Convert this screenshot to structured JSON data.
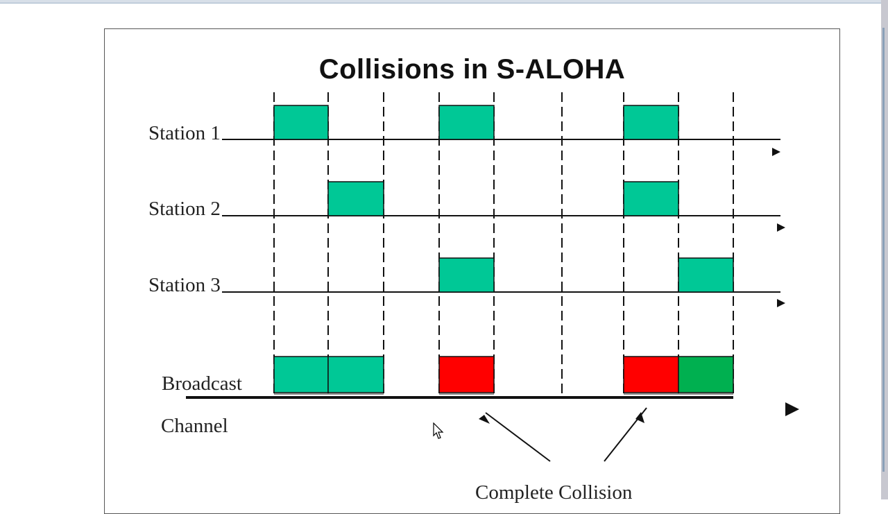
{
  "title": "Collisions in S-ALOHA",
  "rows": [
    {
      "label": "Station 1",
      "slots": [
        1,
        4,
        7
      ]
    },
    {
      "label": "Station 2",
      "slots": [
        2,
        7
      ]
    },
    {
      "label": "Station 3",
      "slots": [
        4,
        8
      ]
    }
  ],
  "broadcast": {
    "label_line1": "Broadcast",
    "label_line2": "Channel",
    "slots": [
      {
        "slot": 1,
        "state": "success"
      },
      {
        "slot": 2,
        "state": "success"
      },
      {
        "slot": 4,
        "state": "collision"
      },
      {
        "slot": 7,
        "state": "collision"
      },
      {
        "slot": 8,
        "state": "success"
      }
    ]
  },
  "annotation": "Complete Collision",
  "colors": {
    "frame": "#00c896",
    "collision": "#ff0000",
    "success_last": "#00b050",
    "line": "#111111"
  }
}
